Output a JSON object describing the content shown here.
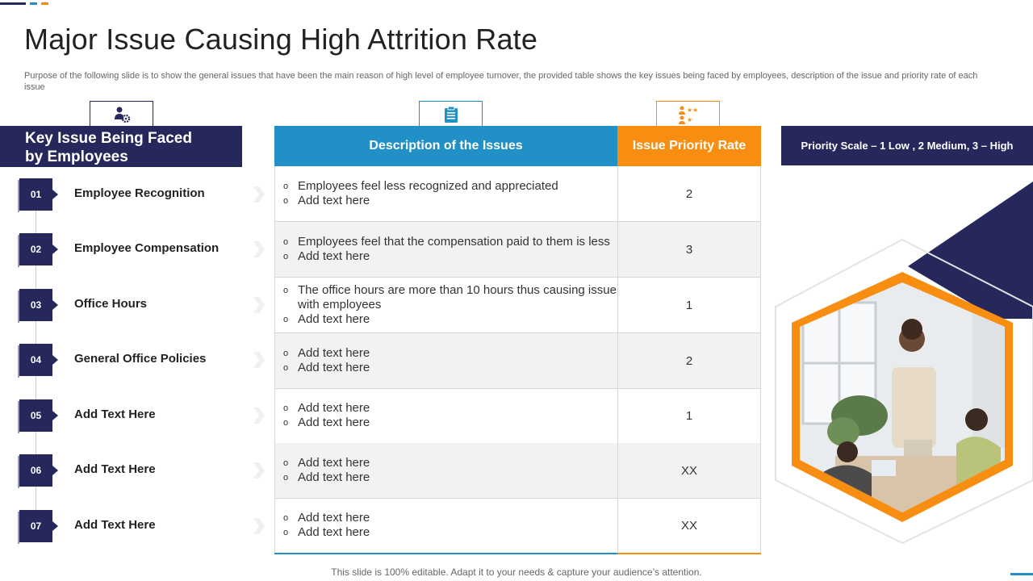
{
  "colors": {
    "navy": "#26275b",
    "blue": "#2090c6",
    "orange": "#f78e12"
  },
  "title": "Major Issue Causing High Attrition Rate",
  "purpose": "Purpose of the following slide is to show the general issues that have been the main reason of high level of employee turnover, the provided table shows the key issues being faced by employees, description of the issue and priority rate of each issue",
  "icons": {
    "left": "employee-gear-icon",
    "middle": "clipboard-icon",
    "right": "rating-stars-icon"
  },
  "left_header": {
    "line1": "Key Issue Being Faced",
    "line2": "by Employees"
  },
  "items": [
    {
      "num": "01",
      "label": "Employee Recognition"
    },
    {
      "num": "02",
      "label": "Employee Compensation"
    },
    {
      "num": "03",
      "label": "Office Hours"
    },
    {
      "num": "04",
      "label": "General Office Policies"
    },
    {
      "num": "05",
      "label": "Add Text Here"
    },
    {
      "num": "06",
      "label": "Add Text Here"
    },
    {
      "num": "07",
      "label": "Add Text Here"
    }
  ],
  "table": {
    "col1": "Description of the Issues",
    "col2": "Issue Priority Rate",
    "rows": [
      {
        "b1": "Employees feel less recognized and appreciated",
        "b2": "Add text here",
        "rate": "2"
      },
      {
        "b1": "Employees feel that the compensation paid to them is less",
        "b2": "Add text here",
        "rate": "3"
      },
      {
        "b1": "The office hours are more than 10 hours thus causing issue with employees",
        "b2": "Add text here",
        "rate": "1"
      },
      {
        "b1": "Add text here",
        "b2": "Add text here",
        "rate": "2"
      },
      {
        "b1": "Add text here",
        "b2": "Add text here",
        "rate": "1"
      },
      {
        "b1": "Add text here",
        "b2": "Add text here",
        "rate": "XX"
      },
      {
        "b1": "Add text here",
        "b2": "Add text here",
        "rate": "XX"
      }
    ]
  },
  "bullet_marker": "o",
  "priority_scale": "Priority Scale – 1 Low , 2 Medium, 3 – High",
  "footer": "This slide is 100% editable. Adapt it to your needs & capture your audience’s attention."
}
